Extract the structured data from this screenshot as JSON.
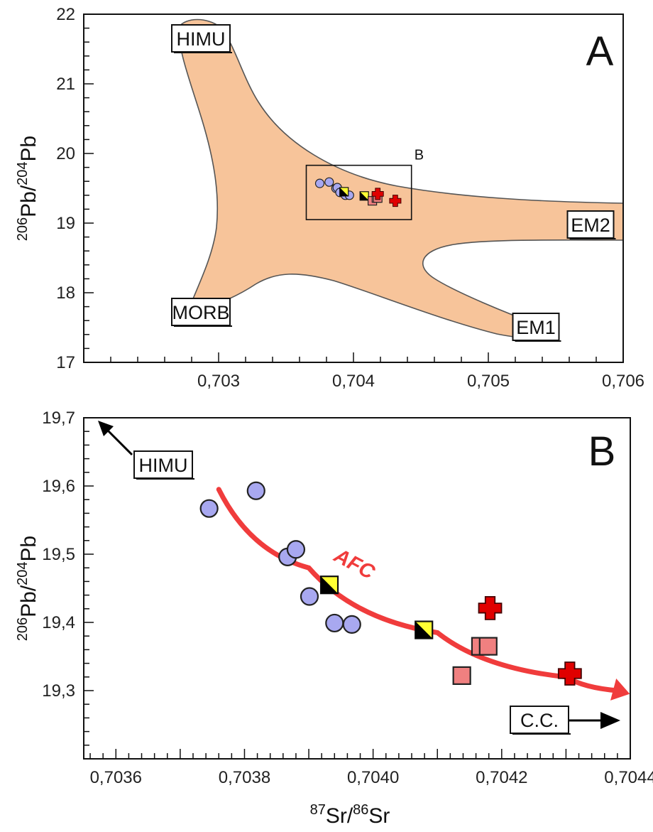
{
  "chart_data": [
    {
      "type": "scatter",
      "panel_label": "A",
      "xlabel": "",
      "ylabel": "206Pb/204Pb",
      "xlim": [
        0.702,
        0.706
      ],
      "ylim": [
        17,
        22
      ],
      "x_ticks": [
        "0,703",
        "0,704",
        "0,705",
        "0,706"
      ],
      "y_ticks": [
        "17",
        "18",
        "19",
        "20",
        "21",
        "22"
      ],
      "field_color": "#f7c49a",
      "mantle_endmembers": [
        {
          "name": "HIMU",
          "x": 0.7028,
          "y": 21.85
        },
        {
          "name": "EM2",
          "x": 0.7059,
          "y": 19.0
        },
        {
          "name": "MORB",
          "x": 0.7027,
          "y": 17.7
        },
        {
          "name": "EM1",
          "x": 0.7054,
          "y": 17.5
        }
      ],
      "inset_box_label": "B",
      "inset_box": {
        "xlim": [
          0.70365,
          0.70443
        ],
        "ylim": [
          19.05,
          19.83
        ]
      },
      "series": [
        {
          "marker": "circle",
          "color": "#a8a8f0",
          "points": [
            [
              0.70375,
              19.57
            ],
            [
              0.70382,
              19.59
            ],
            [
              0.70387,
              19.5
            ],
            [
              0.70388,
              19.51
            ],
            [
              0.7039,
              19.44
            ],
            [
              0.70394,
              19.4
            ],
            [
              0.70397,
              19.4
            ]
          ]
        },
        {
          "marker": "half-square",
          "color": "#ffff33",
          "points": [
            [
              0.70393,
              19.45
            ],
            [
              0.70408,
              19.39
            ]
          ]
        },
        {
          "marker": "square",
          "color": "#f08080",
          "points": [
            [
              0.70414,
              19.32
            ],
            [
              0.70417,
              19.36
            ],
            [
              0.70418,
              19.36
            ]
          ]
        },
        {
          "marker": "cross",
          "color": "#e00000",
          "points": [
            [
              0.70418,
              19.42
            ],
            [
              0.70431,
              19.32
            ]
          ]
        }
      ]
    },
    {
      "type": "scatter",
      "panel_label": "B",
      "xlabel": "87Sr/86Sr",
      "ylabel": "206Pb/204Pb",
      "xlim": [
        0.70355,
        0.7044
      ],
      "ylim": [
        19.2,
        19.7
      ],
      "x_ticks": [
        "0,7036",
        "0,7038",
        "0,7040",
        "0,7042",
        "0,7044"
      ],
      "y_ticks": [
        "19,3",
        "19,4",
        "19,5",
        "19,6",
        "19,7"
      ],
      "arrow_labels": [
        "HIMU",
        "C.C."
      ],
      "trend_label": "AFC",
      "trend_color": "#f03c3c",
      "afc_curve": [
        [
          0.70376,
          19.595
        ],
        [
          0.7039,
          19.48
        ],
        [
          0.7041,
          19.385
        ],
        [
          0.7043,
          19.32
        ],
        [
          0.70438,
          19.3
        ]
      ],
      "series": [
        {
          "marker": "circle",
          "color": "#a8a8f0",
          "points": [
            [
              0.703745,
              19.567
            ],
            [
              0.703818,
              19.593
            ],
            [
              0.703867,
              19.496
            ],
            [
              0.70388,
              19.507
            ],
            [
              0.703901,
              19.438
            ],
            [
              0.70394,
              19.399
            ],
            [
              0.703967,
              19.397
            ]
          ]
        },
        {
          "marker": "half-square",
          "color": "#ffff33",
          "points": [
            [
              0.703932,
              19.455
            ],
            [
              0.704079,
              19.389
            ]
          ]
        },
        {
          "marker": "square",
          "color": "#f08080",
          "points": [
            [
              0.704138,
              19.322
            ],
            [
              0.704167,
              19.365
            ],
            [
              0.704179,
              19.365
            ]
          ]
        },
        {
          "marker": "cross",
          "color": "#e00000",
          "points": [
            [
              0.704182,
              19.421
            ],
            [
              0.704306,
              19.325
            ]
          ]
        }
      ]
    }
  ]
}
